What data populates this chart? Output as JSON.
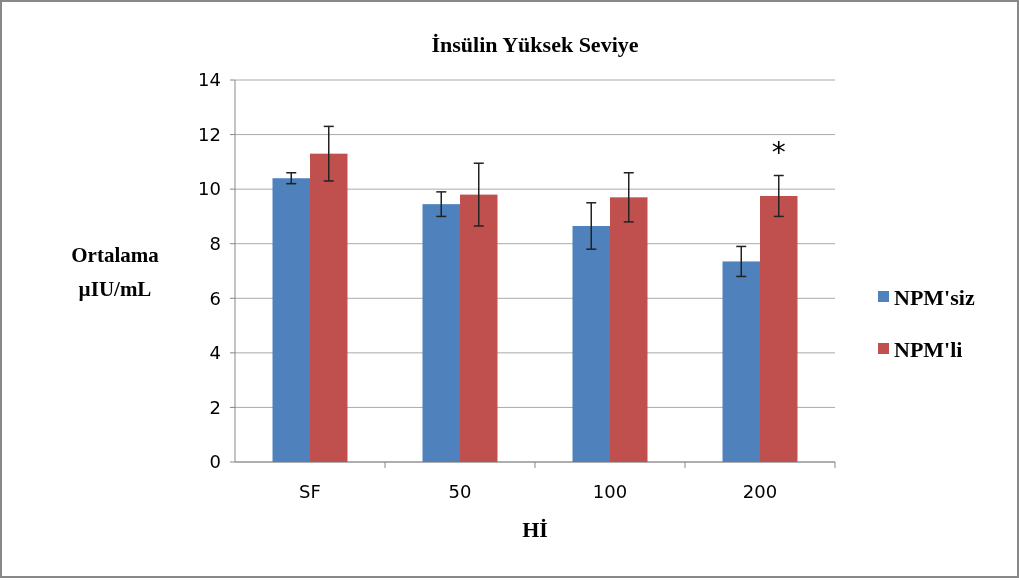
{
  "chart_data": {
    "type": "bar",
    "title": "İnsülin Yüksek Seviye",
    "xlabel": "Hİ",
    "ylabel": "Ortalama\nµIU/mL",
    "categories": [
      "SF",
      "50",
      "100",
      "200"
    ],
    "series": [
      {
        "name": "NPM'siz",
        "color": "#4f81bd",
        "values": [
          10.4,
          9.45,
          8.65,
          7.35
        ],
        "errors": [
          0.2,
          0.45,
          0.85,
          0.55
        ]
      },
      {
        "name": "NPM'li",
        "color": "#c0504d",
        "values": [
          11.3,
          9.8,
          9.7,
          9.75
        ],
        "errors": [
          1.0,
          1.15,
          0.9,
          0.75
        ]
      }
    ],
    "ylim": [
      0,
      14
    ],
    "yticks": [
      0,
      2,
      4,
      6,
      8,
      10,
      12,
      14
    ],
    "grid": "y",
    "legend": "right",
    "annotations": [
      "*"
    ]
  }
}
